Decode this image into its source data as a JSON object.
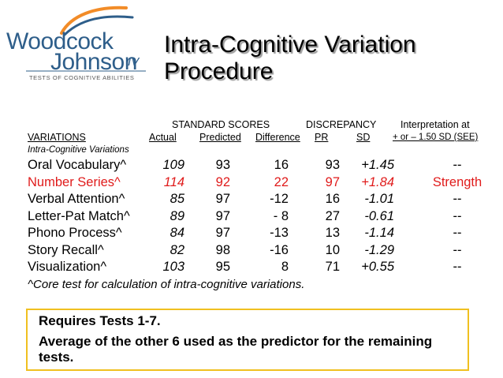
{
  "logo": {
    "line1": "Woodcock",
    "line2": "Johnson",
    "edition": "IV",
    "subtitle": "TESTS OF COGNITIVE ABILITIES",
    "colors": {
      "swoosh_orange": "#f28c28",
      "swoosh_blue": "#2e5e8a",
      "text": "#2e5e8a"
    }
  },
  "title": {
    "line1": "Intra-Cognitive Variation",
    "line2": "Procedure"
  },
  "headers": {
    "standard_scores": "STANDARD SCORES",
    "discrepancy": "DISCREPANCY",
    "interpretation": "Interpretation at",
    "variations": "VARIATIONS",
    "actual": "Actual",
    "predicted": "Predicted",
    "difference": "Difference",
    "pr": "PR",
    "sd": "SD",
    "see": "+ or – 1.50 SD (SEE)",
    "group": "Intra-Cognitive Variations"
  },
  "rows": [
    {
      "name": "Oral Vocabulary^",
      "actual": "109",
      "predicted": "93",
      "difference": "16",
      "pr": "93",
      "sd": "+1.45",
      "interp": "--",
      "highlight": false
    },
    {
      "name": "Number Series^",
      "actual": "114",
      "predicted": "92",
      "difference": "22",
      "pr": "97",
      "sd": "+1.84",
      "interp": "Strength",
      "highlight": true
    },
    {
      "name": "Verbal Attention^",
      "actual": "85",
      "predicted": "97",
      "difference": "-12",
      "pr": "16",
      "sd": "-1.01",
      "interp": "--",
      "highlight": false
    },
    {
      "name": "Letter-Pat Match^",
      "actual": "89",
      "predicted": "97",
      "difference": "-  8",
      "pr": "27",
      "sd": "-0.61",
      "interp": "--",
      "highlight": false
    },
    {
      "name": "Phono Process^",
      "actual": "84",
      "predicted": "97",
      "difference": "-13",
      "pr": "13",
      "sd": "-1.14",
      "interp": "--",
      "highlight": false
    },
    {
      "name": "Story Recall^",
      "actual": "82",
      "predicted": "98",
      "difference": "-16",
      "pr": "10",
      "sd": "-1.29",
      "interp": "--",
      "highlight": false
    },
    {
      "name": "Visualization^",
      "actual": "103",
      "predicted": "95",
      "difference": "8",
      "pr": "71",
      "sd": "+0.55",
      "interp": "--",
      "highlight": false
    }
  ],
  "footnote": "^Core test for calculation of intra-cognitive variations.",
  "box": {
    "line1": "Requires Tests 1-7.",
    "line2": "Average of the other 6 used as the predictor for the remaining tests.",
    "border_color": "#f0c020"
  },
  "colors": {
    "strength": "#e01b1b"
  }
}
